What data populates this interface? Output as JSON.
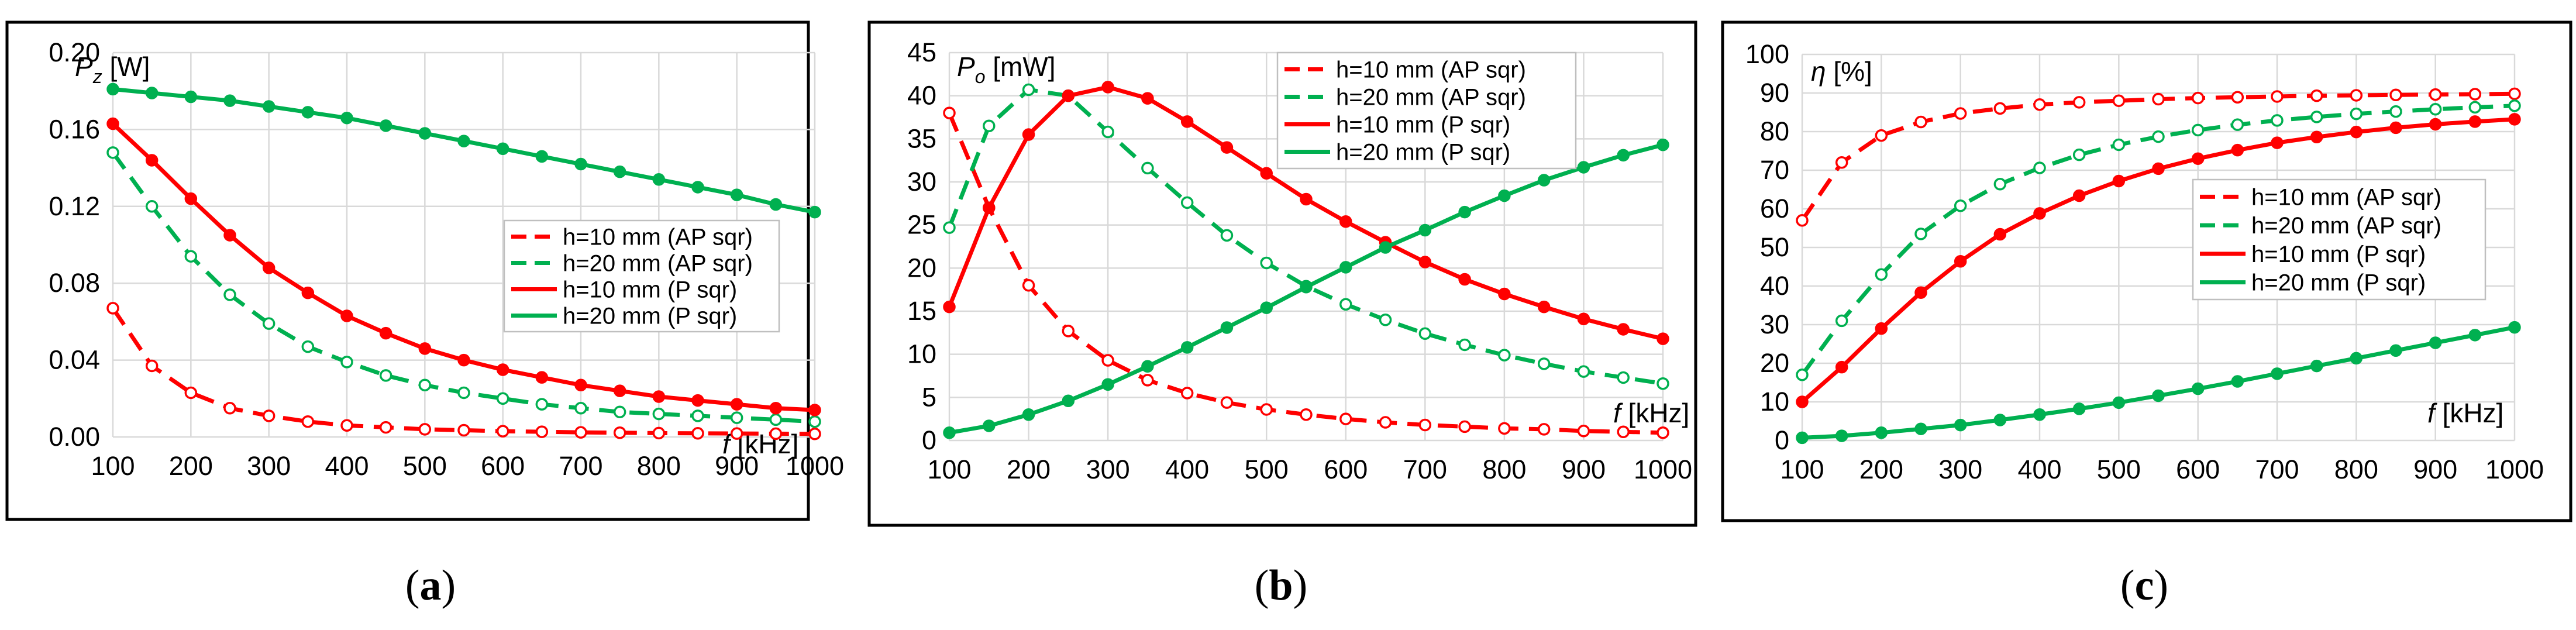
{
  "colors": {
    "red": "#ff0000",
    "green": "#00b050",
    "grid": "#d9d9d9"
  },
  "chart_data": [
    {
      "id": "a",
      "type": "line",
      "caption_label": "(a)",
      "caption_letter": "a",
      "ylabel_sym": "P",
      "ylabel_sub": "z",
      "ylabel_unit": " [W]",
      "xlabel_sym": "f",
      "xlabel_unit": " [kHz]",
      "x": [
        100,
        150,
        200,
        250,
        300,
        350,
        400,
        450,
        500,
        550,
        600,
        650,
        700,
        750,
        800,
        850,
        900,
        950,
        1000
      ],
      "xlim": [
        100,
        1000
      ],
      "xticks": [
        "100",
        "200",
        "300",
        "400",
        "500",
        "600",
        "700",
        "800",
        "900",
        "1000"
      ],
      "ylim": [
        0,
        0.2
      ],
      "yticks": [
        "0.00",
        "0.04",
        "0.08",
        "0.12",
        "0.16",
        "0.20"
      ],
      "legend_pos": "center-right",
      "series": [
        {
          "name": "h=10 mm (AP sqr)",
          "color": "red",
          "dashed": true,
          "values": [
            0.067,
            0.037,
            0.023,
            0.015,
            0.011,
            0.008,
            0.006,
            0.005,
            0.004,
            0.0035,
            0.003,
            0.0027,
            0.0024,
            0.0022,
            0.002,
            0.0019,
            0.0018,
            0.0017,
            0.0016
          ]
        },
        {
          "name": "h=20 mm (AP sqr)",
          "color": "green",
          "dashed": true,
          "values": [
            0.148,
            0.12,
            0.094,
            0.074,
            0.059,
            0.047,
            0.039,
            0.032,
            0.027,
            0.023,
            0.02,
            0.017,
            0.015,
            0.013,
            0.012,
            0.011,
            0.01,
            0.009,
            0.008
          ]
        },
        {
          "name": "h=10 mm (P sqr)",
          "color": "red",
          "dashed": false,
          "values": [
            0.163,
            0.144,
            0.124,
            0.105,
            0.088,
            0.075,
            0.063,
            0.054,
            0.046,
            0.04,
            0.035,
            0.031,
            0.027,
            0.024,
            0.021,
            0.019,
            0.017,
            0.015,
            0.014
          ]
        },
        {
          "name": "h=20 mm (P sqr)",
          "color": "green",
          "dashed": false,
          "values": [
            0.181,
            0.179,
            0.177,
            0.175,
            0.172,
            0.169,
            0.166,
            0.162,
            0.158,
            0.154,
            0.15,
            0.146,
            0.142,
            0.138,
            0.134,
            0.13,
            0.126,
            0.121,
            0.117
          ]
        }
      ]
    },
    {
      "id": "b",
      "type": "line",
      "caption_label": "(b)",
      "caption_letter": "b",
      "ylabel_sym": "P",
      "ylabel_sub": "o",
      "ylabel_unit": " [mW]",
      "xlabel_sym": "f",
      "xlabel_unit": " [kHz]",
      "x": [
        100,
        150,
        200,
        250,
        300,
        350,
        400,
        450,
        500,
        550,
        600,
        650,
        700,
        750,
        800,
        850,
        900,
        950,
        1000
      ],
      "xlim": [
        100,
        1000
      ],
      "xticks": [
        "100",
        "200",
        "300",
        "400",
        "500",
        "600",
        "700",
        "800",
        "900",
        "1000"
      ],
      "ylim": [
        0,
        45
      ],
      "yticks": [
        "0",
        "5",
        "10",
        "15",
        "20",
        "25",
        "30",
        "35",
        "40",
        "45"
      ],
      "legend_pos": "top-right",
      "series": [
        {
          "name": "h=10 mm (AP sqr)",
          "color": "red",
          "dashed": true,
          "values": [
            38,
            27,
            18,
            12.7,
            9.3,
            7,
            5.5,
            4.4,
            3.6,
            3.0,
            2.5,
            2.1,
            1.8,
            1.6,
            1.4,
            1.3,
            1.1,
            1.0,
            0.9
          ]
        },
        {
          "name": "h=20 mm (AP sqr)",
          "color": "green",
          "dashed": true,
          "values": [
            24.7,
            36.5,
            40.7,
            40,
            35.8,
            31.6,
            27.6,
            23.8,
            20.6,
            17.9,
            15.8,
            14,
            12.4,
            11.1,
            9.9,
            8.9,
            8,
            7.3,
            6.6
          ]
        },
        {
          "name": "h=10 mm (P sqr)",
          "color": "red",
          "dashed": false,
          "values": [
            15.5,
            27,
            35.5,
            40,
            41,
            39.7,
            37,
            34,
            31,
            28,
            25.4,
            23,
            20.7,
            18.7,
            17,
            15.5,
            14.1,
            12.9,
            11.8
          ]
        },
        {
          "name": "h=20 mm (P sqr)",
          "color": "green",
          "dashed": false,
          "values": [
            0.9,
            1.7,
            3,
            4.6,
            6.5,
            8.6,
            10.8,
            13.1,
            15.4,
            17.8,
            20.1,
            22.4,
            24.4,
            26.5,
            28.4,
            30.2,
            31.7,
            33.1,
            34.3
          ]
        }
      ]
    },
    {
      "id": "c",
      "type": "line",
      "caption_label": "(c)",
      "caption_letter": "c",
      "ylabel_sym": "η",
      "ylabel_sub": "",
      "ylabel_unit": " [%]",
      "xlabel_sym": "f",
      "xlabel_unit": " [kHz]",
      "x": [
        100,
        150,
        200,
        250,
        300,
        350,
        400,
        450,
        500,
        550,
        600,
        650,
        700,
        750,
        800,
        850,
        900,
        950,
        1000
      ],
      "xlim": [
        100,
        1000
      ],
      "xticks": [
        "100",
        "200",
        "300",
        "400",
        "500",
        "600",
        "700",
        "800",
        "900",
        "1000"
      ],
      "ylim": [
        0,
        100
      ],
      "yticks": [
        "0",
        "10",
        "20",
        "30",
        "40",
        "50",
        "60",
        "70",
        "80",
        "90",
        "100"
      ],
      "legend_pos": "center-right",
      "series": [
        {
          "name": "h=10 mm (AP sqr)",
          "color": "red",
          "dashed": true,
          "values": [
            57,
            72,
            79,
            82.5,
            84.7,
            86,
            87,
            87.6,
            88,
            88.4,
            88.7,
            88.9,
            89.1,
            89.3,
            89.4,
            89.5,
            89.6,
            89.7,
            89.8
          ]
        },
        {
          "name": "h=20 mm (AP sqr)",
          "color": "green",
          "dashed": true,
          "values": [
            17,
            31,
            43,
            53.5,
            60.8,
            66.4,
            70.6,
            74,
            76.6,
            78.7,
            80.4,
            81.8,
            82.9,
            83.8,
            84.6,
            85.2,
            85.8,
            86.3,
            86.7
          ]
        },
        {
          "name": "h=10 mm (P sqr)",
          "color": "red",
          "dashed": false,
          "values": [
            10,
            19,
            29,
            38.3,
            46.4,
            53.4,
            58.8,
            63.4,
            67.2,
            70.4,
            73,
            75.2,
            77.1,
            78.6,
            79.9,
            81,
            81.9,
            82.6,
            83.2
          ]
        },
        {
          "name": "h=20 mm (P sqr)",
          "color": "green",
          "dashed": false,
          "values": [
            0.7,
            1.2,
            2,
            3,
            4,
            5.3,
            6.7,
            8.2,
            9.8,
            11.6,
            13.4,
            15.3,
            17.3,
            19.3,
            21.3,
            23.3,
            25.3,
            27.3,
            29.3
          ]
        }
      ]
    }
  ]
}
